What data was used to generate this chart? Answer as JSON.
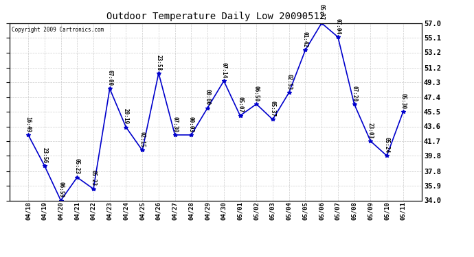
{
  "title": "Outdoor Temperature Daily Low 20090512",
  "copyright": "Copyright 2009 Cartronics.com",
  "line_color": "#0000cc",
  "marker_color": "#0000cc",
  "bg_color": "#ffffff",
  "grid_color": "#cccccc",
  "text_color": "#000000",
  "ylim": [
    34.0,
    57.0
  ],
  "yticks": [
    34.0,
    35.9,
    37.8,
    39.8,
    41.7,
    43.6,
    45.5,
    47.4,
    49.3,
    51.2,
    53.2,
    55.1,
    57.0
  ],
  "dates": [
    "04/18",
    "04/19",
    "04/20",
    "04/21",
    "04/22",
    "04/23",
    "04/24",
    "04/25",
    "04/26",
    "04/27",
    "04/28",
    "04/29",
    "04/30",
    "05/01",
    "05/02",
    "05/03",
    "05/04",
    "05/05",
    "05/06",
    "05/07",
    "05/08",
    "05/09",
    "05/10",
    "05/11"
  ],
  "values": [
    42.5,
    38.5,
    34.0,
    37.0,
    35.5,
    48.5,
    43.5,
    40.5,
    50.5,
    42.5,
    42.5,
    46.0,
    49.5,
    45.0,
    46.5,
    44.5,
    48.0,
    53.5,
    57.0,
    55.2,
    46.5,
    41.7,
    39.8,
    45.5
  ],
  "labels": [
    "16:49",
    "23:56",
    "06:59",
    "05:23",
    "05:23",
    "07:00",
    "20:19",
    "02:15",
    "23:58",
    "07:30",
    "00:03",
    "00:00",
    "07:14",
    "05:07",
    "06:50",
    "05:37",
    "02:53",
    "01:42",
    "05:27",
    "07:04",
    "07:20",
    "23:03",
    "05:24",
    "05:30"
  ]
}
